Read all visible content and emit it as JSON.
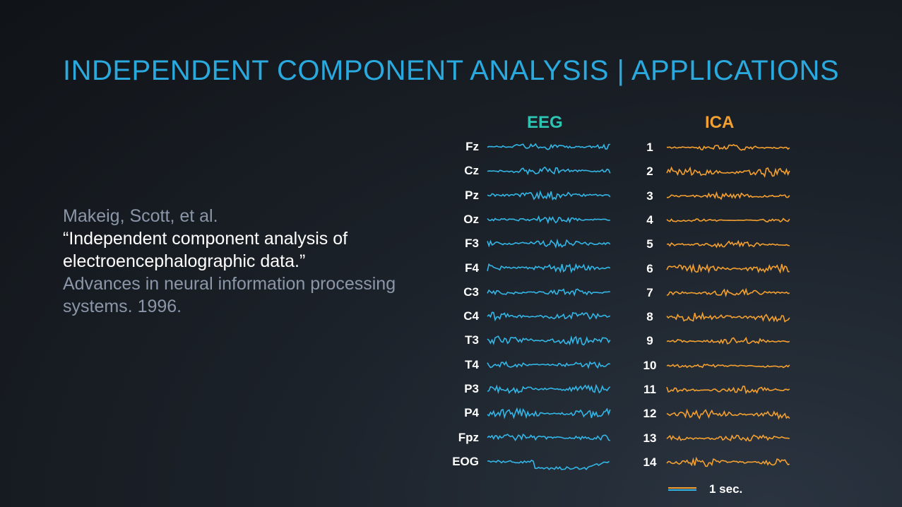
{
  "slide": {
    "title": "INDEPENDENT COMPONENT ANALYSIS | APPLICATIONS",
    "citation": {
      "authors": "Makeig, Scott, et al.",
      "paper_title": "“Independent component analysis of electroencephalographic data.”",
      "venue": "Advances in neural information processing systems. 1996."
    },
    "figure": {
      "eeg_header": "EEG",
      "ica_header": "ICA",
      "eeg_channels": [
        "Fz",
        "Cz",
        "Pz",
        "Oz",
        "F3",
        "F4",
        "C3",
        "C4",
        "T3",
        "T4",
        "P3",
        "P4",
        "Fpz",
        "EOG"
      ],
      "ica_components": [
        "1",
        "2",
        "3",
        "4",
        "5",
        "6",
        "7",
        "8",
        "9",
        "10",
        "11",
        "12",
        "13",
        "14"
      ],
      "scale_label": "1 sec.",
      "colors": {
        "eeg_trace": "#33b6e6",
        "ica_trace": "#f3a030",
        "eeg_header": "#2ec4b3",
        "ica_header": "#f3a030"
      }
    }
  }
}
